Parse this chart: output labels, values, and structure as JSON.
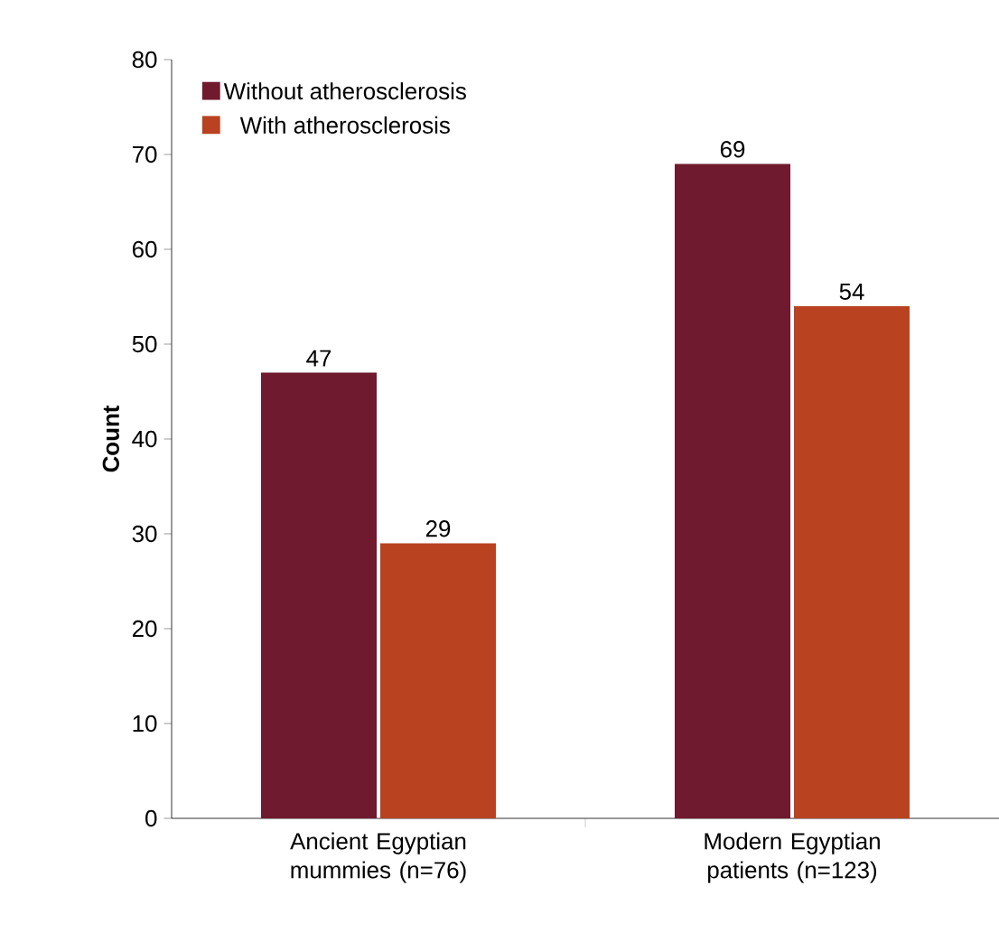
{
  "chart_data": {
    "type": "bar",
    "ylabel": "Count",
    "categories": [
      "Ancient Egyptian mummies (n=76)",
      "Modern Egyptian patients (n=123)"
    ],
    "series": [
      {
        "name": "Without atherosclerosis",
        "color": "#6f1a2e",
        "values": [
          47,
          69
        ]
      },
      {
        "name": "With atherosclerosis",
        "color": "#b94221",
        "values": [
          29,
          54
        ]
      }
    ],
    "ylim": [
      0,
      80
    ],
    "yticks": [
      0,
      10,
      20,
      30,
      40,
      50,
      60,
      70,
      80
    ],
    "data_labels": true,
    "legend": "top left",
    "grid": false
  }
}
